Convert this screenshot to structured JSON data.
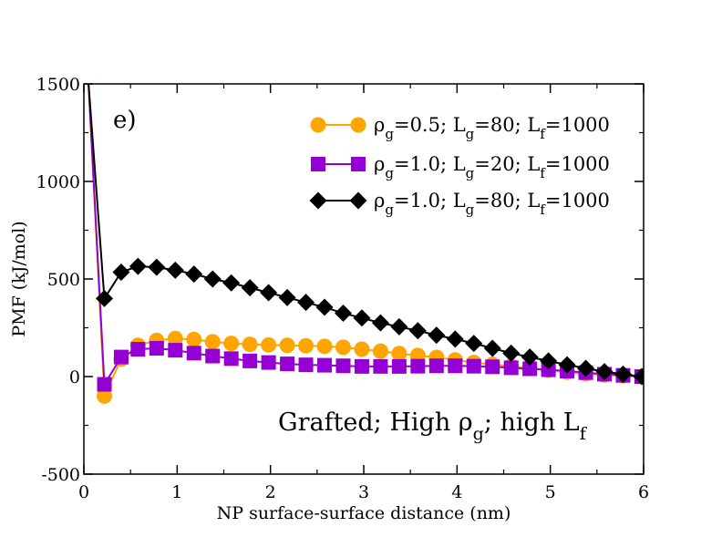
{
  "chart_data": {
    "type": "line",
    "panel_label": "e)",
    "xlabel": "NP surface-surface distance (nm)",
    "ylabel": "PMF (kJ/mol)",
    "xlim": [
      0,
      6
    ],
    "ylim": [
      -500,
      1500
    ],
    "x_ticks": [
      0,
      1,
      2,
      3,
      4,
      5,
      6
    ],
    "y_ticks": [
      -500,
      0,
      500,
      1000,
      1500
    ],
    "grid": false,
    "legend_position": "top-right",
    "annotation": {
      "prefix": "Grafted; High ",
      "rho": "ρ",
      "rho_sub": "g",
      "middle": "; high L",
      "l_sub": "f"
    },
    "series": [
      {
        "name": "ρg=0.5; Lg=80; Lf=1000",
        "legend": {
          "rho": "ρ",
          "sub1": "g",
          "part1": "=0.5; L",
          "sub2": "g",
          "part2": "=80; L",
          "sub3": "f",
          "part3": "=1000"
        },
        "color": "#ffa500",
        "marker": "circle",
        "x": [
          0.05,
          0.22,
          0.4,
          0.58,
          0.78,
          0.98,
          1.18,
          1.38,
          1.58,
          1.78,
          1.98,
          2.18,
          2.38,
          2.58,
          2.78,
          2.98,
          3.18,
          3.38,
          3.58,
          3.78,
          3.98,
          4.18,
          4.38,
          4.58,
          4.78,
          4.98,
          5.18,
          5.38,
          5.58,
          5.78,
          5.98
        ],
        "y": [
          1500,
          -100,
          90,
          160,
          185,
          195,
          190,
          178,
          170,
          165,
          162,
          160,
          158,
          155,
          150,
          140,
          130,
          118,
          108,
          98,
          85,
          72,
          62,
          52,
          42,
          32,
          22,
          14,
          8,
          4,
          0
        ]
      },
      {
        "name": "ρg=1.0; Lg=20; Lf=1000",
        "legend": {
          "rho": "ρ",
          "sub1": "g",
          "part1": "=1.0; L",
          "sub2": "g",
          "part2": "=20; L",
          "sub3": "f",
          "part3": "=1000"
        },
        "color": "#9400d3",
        "marker": "square",
        "x": [
          0.05,
          0.22,
          0.4,
          0.58,
          0.78,
          0.98,
          1.18,
          1.38,
          1.58,
          1.78,
          1.98,
          2.18,
          2.38,
          2.58,
          2.78,
          2.98,
          3.18,
          3.38,
          3.58,
          3.78,
          3.98,
          4.18,
          4.38,
          4.58,
          4.78,
          4.98,
          5.18,
          5.38,
          5.58,
          5.78,
          5.98
        ],
        "y": [
          1500,
          -40,
          100,
          140,
          145,
          135,
          120,
          105,
          92,
          80,
          72,
          65,
          60,
          58,
          55,
          52,
          52,
          52,
          53,
          55,
          55,
          53,
          50,
          45,
          40,
          35,
          28,
          20,
          12,
          6,
          0
        ]
      },
      {
        "name": "ρg=1.0; Lg=80; Lf=1000",
        "legend": {
          "rho": "ρ",
          "sub1": "g",
          "part1": "=1.0; L",
          "sub2": "g",
          "part2": "=80; L",
          "sub3": "f",
          "part3": "=1000"
        },
        "color": "#000000",
        "marker": "diamond",
        "x": [
          0.05,
          0.22,
          0.4,
          0.58,
          0.78,
          0.98,
          1.18,
          1.38,
          1.58,
          1.78,
          1.98,
          2.18,
          2.38,
          2.58,
          2.78,
          2.98,
          3.18,
          3.38,
          3.58,
          3.78,
          3.98,
          4.18,
          4.38,
          4.58,
          4.78,
          4.98,
          5.18,
          5.38,
          5.58,
          5.78,
          5.98
        ],
        "y": [
          1500,
          400,
          535,
          565,
          560,
          545,
          525,
          500,
          480,
          455,
          430,
          405,
          380,
          355,
          325,
          300,
          275,
          255,
          235,
          212,
          192,
          170,
          145,
          120,
          100,
          80,
          60,
          42,
          25,
          12,
          0
        ]
      }
    ]
  }
}
